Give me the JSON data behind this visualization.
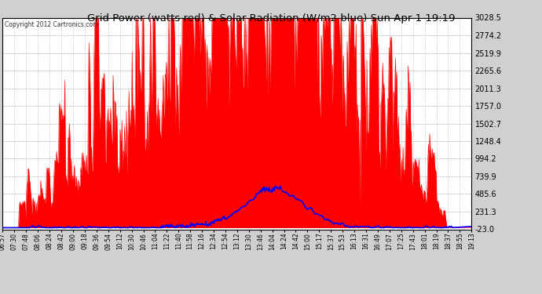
{
  "title": "Grid Power (watts red) & Solar Radiation (W/m2 blue) Sun Apr 1 19:19",
  "copyright_text": "Copyright 2012 Cartronics.com",
  "y_min": -23.0,
  "y_max": 3028.5,
  "y_ticks": [
    -23.0,
    231.3,
    485.6,
    739.9,
    994.2,
    1248.4,
    1502.7,
    1757.0,
    2011.3,
    2265.6,
    2519.9,
    2774.2,
    3028.5
  ],
  "x_labels": [
    "06:57",
    "07:30",
    "07:48",
    "08:06",
    "08:24",
    "08:42",
    "09:00",
    "09:18",
    "09:36",
    "09:54",
    "10:12",
    "10:30",
    "10:46",
    "11:04",
    "11:22",
    "11:40",
    "11:58",
    "12:16",
    "12:34",
    "12:54",
    "13:12",
    "13:30",
    "13:46",
    "14:04",
    "14:24",
    "14:42",
    "15:00",
    "15:17",
    "15:37",
    "15:53",
    "16:13",
    "16:31",
    "16:49",
    "17:07",
    "17:25",
    "17:43",
    "18:01",
    "18:19",
    "18:37",
    "18:55",
    "19:13"
  ],
  "bg_color": "#d0d0d0",
  "plot_bg_color": "#ffffff",
  "grid_color": "#888888",
  "red_color": "#ff0000",
  "blue_color": "#0000ff",
  "border_color": "#000000",
  "n_points": 740
}
